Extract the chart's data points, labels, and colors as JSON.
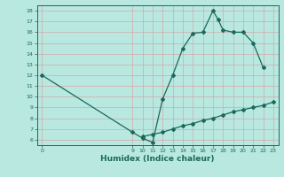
{
  "xlabel": "Humidex (Indice chaleur)",
  "background_color": "#b8e8e0",
  "grid_color_major": "#d4a8a8",
  "line_color": "#1a6a5a",
  "xlim": [
    -0.5,
    23.5
  ],
  "ylim": [
    5.5,
    18.5
  ],
  "xticks": [
    0,
    9,
    10,
    11,
    12,
    13,
    14,
    15,
    16,
    17,
    18,
    19,
    20,
    21,
    22,
    23
  ],
  "yticks": [
    6,
    7,
    8,
    9,
    10,
    11,
    12,
    13,
    14,
    15,
    16,
    17,
    18
  ],
  "line1_x": [
    0,
    9,
    10,
    11,
    12,
    13,
    14,
    15,
    16,
    17,
    17.5,
    18,
    19,
    20,
    21,
    22
  ],
  "line1_y": [
    12.0,
    6.7,
    6.15,
    5.75,
    9.8,
    12.0,
    14.5,
    15.9,
    16.0,
    18.0,
    17.2,
    16.2,
    16.0,
    16.0,
    15.0,
    12.7
  ],
  "line2_x": [
    10,
    11,
    12,
    13,
    14,
    15,
    16,
    17,
    18,
    19,
    20,
    21,
    22,
    23
  ],
  "line2_y": [
    6.3,
    6.5,
    6.7,
    7.0,
    7.3,
    7.5,
    7.8,
    8.0,
    8.3,
    8.6,
    8.8,
    9.0,
    9.2,
    9.5
  ],
  "marker": "D",
  "markersize": 2.0,
  "linewidth": 0.9,
  "tick_fontsize": 4.5,
  "xlabel_fontsize": 6.5,
  "xlabel_fontweight": "bold"
}
